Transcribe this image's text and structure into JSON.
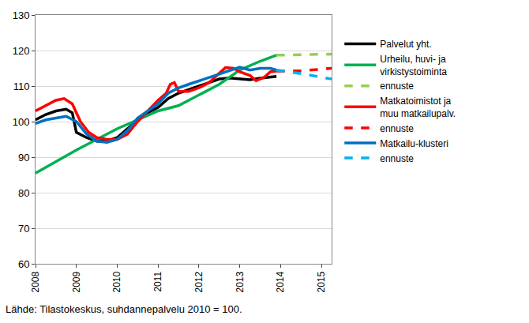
{
  "chart_data": {
    "type": "line",
    "source": "Lähde: Tilastokeskus, suhdannepalvelu 2010 = 100.",
    "xlim": [
      2008,
      2015.25
    ],
    "xticks": [
      2008,
      2009,
      2010,
      2011,
      2012,
      2013,
      2014,
      2015
    ],
    "ylim": [
      60,
      130
    ],
    "yticks": [
      60,
      70,
      80,
      90,
      100,
      110,
      120,
      130
    ],
    "grid": true,
    "legend": "right",
    "series": [
      {
        "name": "Palvelut yht.",
        "color": "#000000",
        "line_style": "solid",
        "x": [
          2008,
          2008.25,
          2008.5,
          2008.75,
          2008.9,
          2009.0,
          2009.25,
          2009.5,
          2009.75,
          2010,
          2010.25,
          2010.5,
          2010.75,
          2011,
          2011.25,
          2011.5,
          2011.75,
          2012,
          2012.25,
          2012.5,
          2012.75,
          2013,
          2013.25,
          2013.5,
          2013.75,
          2013.9
        ],
        "values": [
          100.5,
          102,
          103,
          103.5,
          102.5,
          97,
          95.5,
          94.5,
          94.5,
          95.5,
          98,
          100.5,
          102.5,
          104,
          106.5,
          108,
          109,
          110,
          111,
          112,
          112.3,
          112,
          111.8,
          112.2,
          112.5,
          112.7
        ]
      },
      {
        "name": "Urheilu, huvi- ja virkistystoiminta",
        "color": "#00b050",
        "line_style": "solid",
        "x": [
          2008,
          2008.5,
          2009,
          2009.5,
          2010,
          2010.5,
          2011,
          2011.5,
          2012,
          2012.5,
          2013,
          2013.5,
          2013.9
        ],
        "values": [
          85.5,
          88.8,
          92,
          95,
          98,
          100.5,
          103,
          104.5,
          107.5,
          110.5,
          114.5,
          117,
          118.7
        ]
      },
      {
        "name": "ennuste",
        "color": "#92d050",
        "line_style": "dash",
        "x": [
          2013.9,
          2014.5,
          2015.25
        ],
        "values": [
          118.7,
          118.9,
          119
        ]
      },
      {
        "name": "Matkatoimistot ja muu matkailupalv.",
        "color": "#ff0000",
        "line_style": "solid",
        "x": [
          2008,
          2008.25,
          2008.5,
          2008.7,
          2008.9,
          2009.1,
          2009.3,
          2009.5,
          2009.75,
          2010,
          2010.25,
          2010.5,
          2010.75,
          2011,
          2011.2,
          2011.3,
          2011.4,
          2011.5,
          2011.75,
          2012,
          2012.25,
          2012.5,
          2012.65,
          2012.85,
          2013,
          2013.25,
          2013.4,
          2013.6,
          2013.75,
          2013.9
        ],
        "values": [
          103,
          104.5,
          106,
          106.5,
          105,
          100,
          97,
          95.5,
          95,
          95,
          96.5,
          100,
          103,
          106,
          108,
          110.5,
          111,
          108.5,
          108.5,
          109.5,
          111,
          113.5,
          115.2,
          115,
          114,
          113,
          111.5,
          112.5,
          114,
          114.2
        ]
      },
      {
        "name": "ennuste",
        "color": "#ff0000",
        "line_style": "dash",
        "x": [
          2013.9,
          2014.5,
          2015.25
        ],
        "values": [
          114.2,
          114.3,
          115
        ]
      },
      {
        "name": "Matkailu-klusteri",
        "color": "#0070c0",
        "line_style": "solid",
        "x": [
          2008,
          2008.25,
          2008.5,
          2008.75,
          2009,
          2009.25,
          2009.5,
          2009.75,
          2010,
          2010.25,
          2010.5,
          2010.75,
          2011,
          2011.25,
          2011.5,
          2011.75,
          2012,
          2012.25,
          2012.5,
          2012.75,
          2013,
          2013.25,
          2013.5,
          2013.75,
          2013.9
        ],
        "values": [
          99.5,
          100.5,
          101,
          101.5,
          100,
          96.5,
          94.5,
          94.2,
          95,
          97.5,
          101,
          103,
          105,
          108,
          109.5,
          110.5,
          111.5,
          112.5,
          113.5,
          114.5,
          115.3,
          114.5,
          115,
          115,
          114.5
        ]
      },
      {
        "name": "ennuste",
        "color": "#00b0f0",
        "line_style": "dash",
        "x": [
          2013.9,
          2014.5,
          2015.25
        ],
        "values": [
          114.5,
          113.5,
          112
        ]
      }
    ]
  }
}
